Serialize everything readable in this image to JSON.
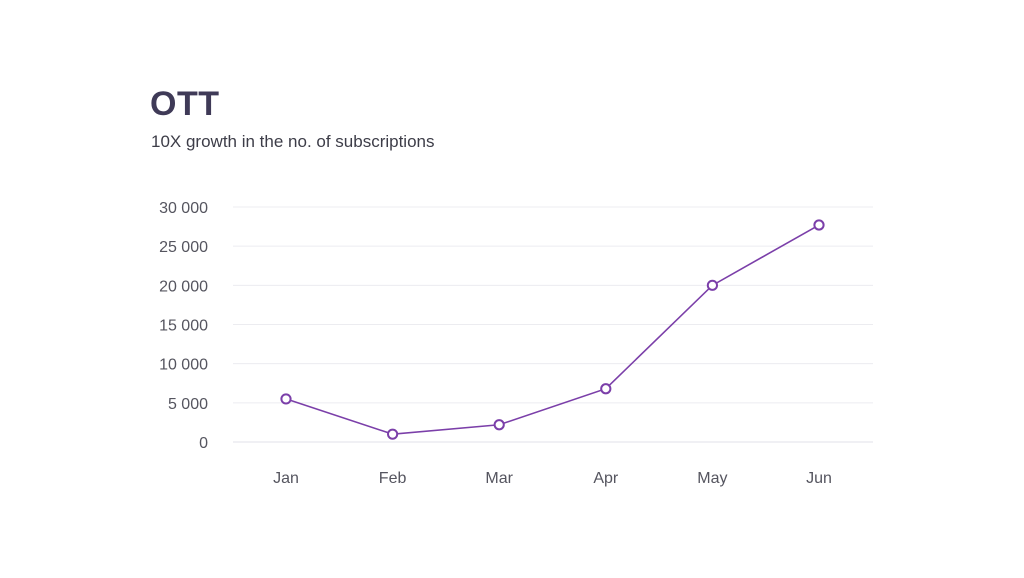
{
  "header": {
    "title": "OTT",
    "subtitle": "10X growth in the no. of subscriptions"
  },
  "colors": {
    "series": "#7b3fa9",
    "title": "#3f3a57"
  },
  "chart_data": {
    "type": "line",
    "title": "OTT",
    "subtitle": "10X growth in the no. of subscriptions",
    "xlabel": "",
    "ylabel": "",
    "categories": [
      "Jan",
      "Feb",
      "Mar",
      "Apr",
      "May",
      "Jun"
    ],
    "series": [
      {
        "values": [
          5500,
          1000,
          2200,
          6800,
          20000,
          27700
        ]
      }
    ],
    "ylim": [
      0,
      30000
    ],
    "yticks": [
      0,
      5000,
      10000,
      15000,
      20000,
      25000,
      30000
    ],
    "ytick_labels": [
      "0",
      "5 000",
      "10 000",
      "15 000",
      "20 000",
      "25 000",
      "30 000"
    ],
    "grid": true,
    "legend": "none",
    "markers": "hollow-circle"
  }
}
